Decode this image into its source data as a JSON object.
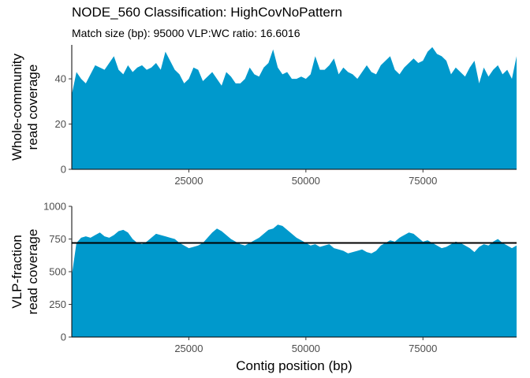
{
  "title": "NODE_560 Classification: HighCovNoPattern",
  "subtitle": "Match size (bp): 95000 VLP:WC ratio: 16.6016",
  "chart_data": [
    {
      "type": "area",
      "ylabel_lines": [
        "Whole-community",
        "read coverage"
      ],
      "xlabel": "",
      "xlim": [
        0,
        95000
      ],
      "ylim": [
        0,
        55
      ],
      "xticks": [
        25000,
        50000,
        75000
      ],
      "yticks": [
        0,
        20,
        40
      ],
      "color": "#0099cc",
      "x": [
        0,
        1000,
        2000,
        3000,
        4000,
        5000,
        6000,
        7000,
        8000,
        9000,
        10000,
        11000,
        12000,
        13000,
        14000,
        15000,
        16000,
        17000,
        18000,
        19000,
        20000,
        21000,
        22000,
        23000,
        24000,
        25000,
        26000,
        27000,
        28000,
        29000,
        30000,
        31000,
        32000,
        33000,
        34000,
        35000,
        36000,
        37000,
        38000,
        39000,
        40000,
        41000,
        42000,
        43000,
        44000,
        45000,
        46000,
        47000,
        48000,
        49000,
        50000,
        51000,
        52000,
        53000,
        54000,
        55000,
        56000,
        57000,
        58000,
        59000,
        60000,
        61000,
        62000,
        63000,
        64000,
        65000,
        66000,
        67000,
        68000,
        69000,
        70000,
        71000,
        72000,
        73000,
        74000,
        75000,
        76000,
        77000,
        78000,
        79000,
        80000,
        81000,
        82000,
        83000,
        84000,
        85000,
        86000,
        87000,
        88000,
        89000,
        90000,
        91000,
        92000,
        93000,
        94000,
        95000
      ],
      "y": [
        33,
        43,
        40,
        38,
        42,
        46,
        45,
        44,
        47,
        50,
        44,
        42,
        46,
        43,
        45,
        46,
        44,
        45,
        47,
        44,
        52,
        48,
        44,
        42,
        38,
        40,
        45,
        44,
        39,
        41,
        43,
        40,
        37,
        43,
        41,
        38,
        38,
        40,
        45,
        42,
        41,
        45,
        47,
        53,
        45,
        42,
        43,
        40,
        40,
        41,
        40,
        42,
        50,
        44,
        44,
        46,
        49,
        42,
        45,
        43,
        42,
        40,
        43,
        46,
        43,
        42,
        46,
        48,
        50,
        44,
        42,
        45,
        47,
        49,
        47,
        48,
        52,
        54,
        51,
        50,
        48,
        42,
        45,
        43,
        41,
        45,
        48,
        38,
        45,
        41,
        44,
        46,
        42,
        44,
        40,
        50
      ]
    },
    {
      "type": "area",
      "ylabel_lines": [
        "VLP-fraction",
        "read coverage"
      ],
      "xlabel": "Contig position (bp)",
      "xlim": [
        0,
        95000
      ],
      "ylim": [
        0,
        1000
      ],
      "xticks": [
        25000,
        50000,
        75000
      ],
      "yticks": [
        0,
        250,
        500,
        750,
        1000
      ],
      "color": "#0099cc",
      "hline": 720,
      "x": [
        0,
        1000,
        2000,
        3000,
        4000,
        5000,
        6000,
        7000,
        8000,
        9000,
        10000,
        11000,
        12000,
        13000,
        14000,
        15000,
        16000,
        17000,
        18000,
        19000,
        20000,
        21000,
        22000,
        23000,
        24000,
        25000,
        26000,
        27000,
        28000,
        29000,
        30000,
        31000,
        32000,
        33000,
        34000,
        35000,
        36000,
        37000,
        38000,
        39000,
        40000,
        41000,
        42000,
        43000,
        44000,
        45000,
        46000,
        47000,
        48000,
        49000,
        50000,
        51000,
        52000,
        53000,
        54000,
        55000,
        56000,
        57000,
        58000,
        59000,
        60000,
        61000,
        62000,
        63000,
        64000,
        65000,
        66000,
        67000,
        68000,
        69000,
        70000,
        71000,
        72000,
        73000,
        74000,
        75000,
        76000,
        77000,
        78000,
        79000,
        80000,
        81000,
        82000,
        83000,
        84000,
        85000,
        86000,
        87000,
        88000,
        89000,
        90000,
        91000,
        92000,
        93000,
        94000,
        95000
      ],
      "y": [
        470,
        720,
        760,
        770,
        760,
        780,
        800,
        770,
        760,
        780,
        810,
        820,
        800,
        750,
        720,
        710,
        730,
        760,
        790,
        780,
        770,
        760,
        750,
        720,
        700,
        680,
        690,
        700,
        720,
        760,
        800,
        830,
        810,
        780,
        750,
        730,
        710,
        700,
        720,
        740,
        760,
        790,
        820,
        830,
        860,
        850,
        820,
        790,
        760,
        740,
        720,
        700,
        710,
        690,
        700,
        710,
        680,
        670,
        660,
        640,
        650,
        660,
        670,
        650,
        640,
        660,
        700,
        720,
        740,
        730,
        760,
        780,
        800,
        790,
        760,
        730,
        740,
        720,
        700,
        680,
        690,
        710,
        730,
        720,
        700,
        680,
        650,
        690,
        710,
        700,
        730,
        750,
        720,
        700,
        680,
        700
      ]
    }
  ]
}
